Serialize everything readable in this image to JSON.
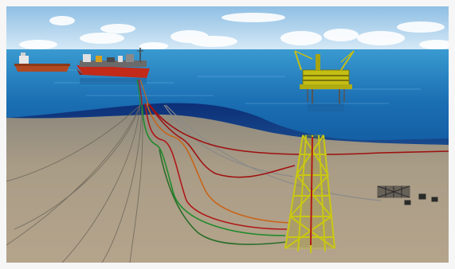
{
  "image": {
    "kind": "illustration",
    "elements": [
      "fpso-vessel",
      "shuttle-tanker",
      "offshore-platform",
      "jacket-structure",
      "subsea-manifold",
      "risers",
      "flowlines",
      "seabed",
      "sea-surface",
      "sky"
    ]
  },
  "colors": {
    "sky_top": "#8fc0e6",
    "sky_bottom": "#d9ecf8",
    "sea_surface": "#1f78b8",
    "sea_deep": "#0d3f8a",
    "seabed": "#a79a86",
    "jacket": "#d6d617",
    "riser_red": "#b01818",
    "riser_green": "#1f8a2a",
    "riser_orange": "#c8641a",
    "cable_gray": "#8a8a8a",
    "hull_red": "#c22a1a"
  }
}
